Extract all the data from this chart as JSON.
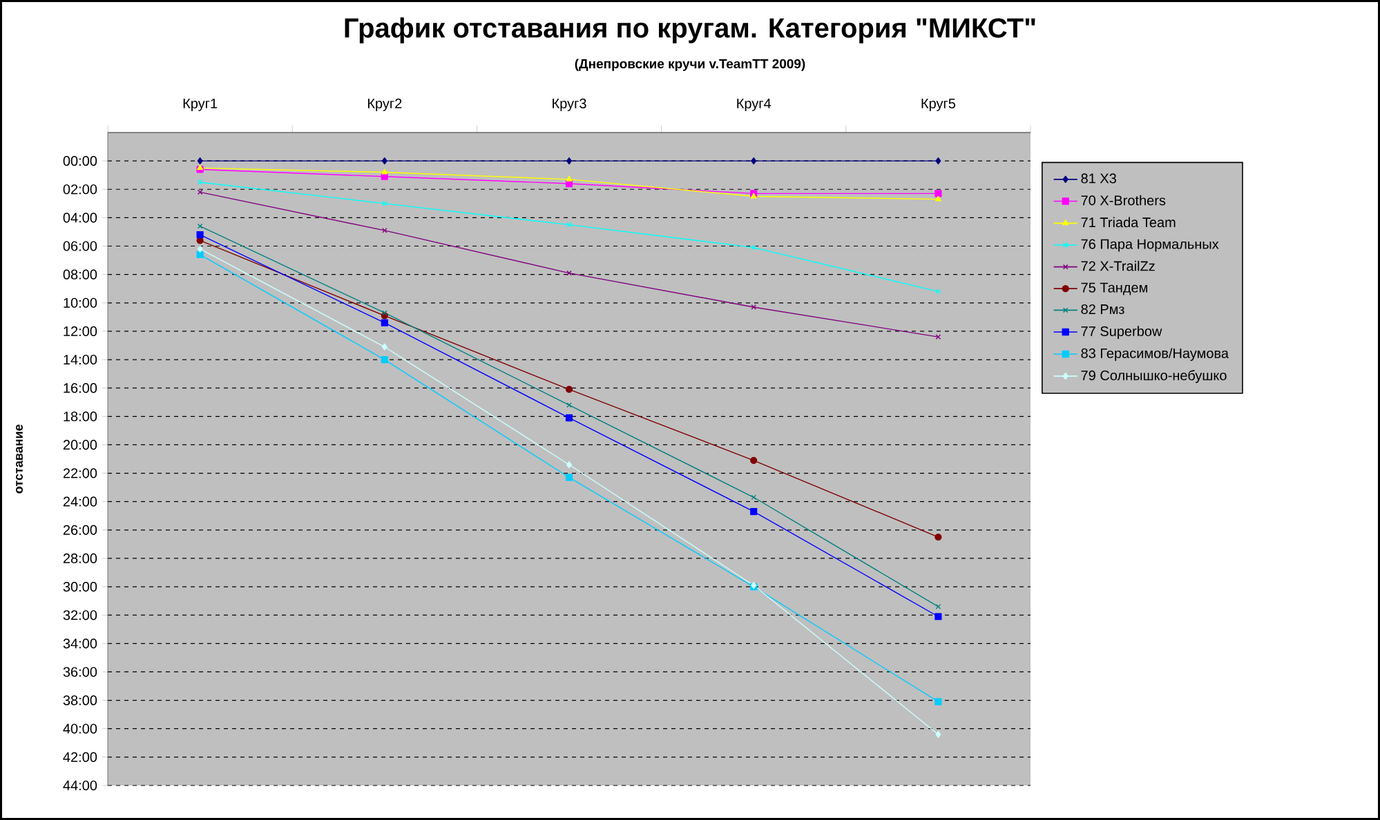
{
  "chart_data": {
    "type": "line",
    "title": "График отставания по кругам. Категория \"МИКСТ\"",
    "subtitle": "(Днепровские кручи v.TeamTT 2009)",
    "ylabel": "отставание",
    "categories": [
      "Круг1",
      "Круг2",
      "Круг3",
      "Круг4",
      "Круг5"
    ],
    "ylim": [
      44,
      -2
    ],
    "yticks": [
      {
        "value": 0,
        "label": "00:00"
      },
      {
        "value": 2,
        "label": "02:00"
      },
      {
        "value": 4,
        "label": "04:00"
      },
      {
        "value": 6,
        "label": "06:00"
      },
      {
        "value": 8,
        "label": "08:00"
      },
      {
        "value": 10,
        "label": "10:00"
      },
      {
        "value": 12,
        "label": "12:00"
      },
      {
        "value": 14,
        "label": "14:00"
      },
      {
        "value": 16,
        "label": "16:00"
      },
      {
        "value": 18,
        "label": "18:00"
      },
      {
        "value": 20,
        "label": "20:00"
      },
      {
        "value": 22,
        "label": "22:00"
      },
      {
        "value": 24,
        "label": "24:00"
      },
      {
        "value": 26,
        "label": "26:00"
      },
      {
        "value": 28,
        "label": "28:00"
      },
      {
        "value": 30,
        "label": "30:00"
      },
      {
        "value": 32,
        "label": "32:00"
      },
      {
        "value": 34,
        "label": "34:00"
      },
      {
        "value": 36,
        "label": "36:00"
      },
      {
        "value": 38,
        "label": "38:00"
      },
      {
        "value": 40,
        "label": "40:00"
      },
      {
        "value": 42,
        "label": "42:00"
      },
      {
        "value": 44,
        "label": "44:00"
      }
    ],
    "grid": "y",
    "legend": "right",
    "series": [
      {
        "name": "81 X3",
        "color": "#000080",
        "marker": "diamond",
        "values": [
          0,
          0,
          0,
          0,
          0
        ]
      },
      {
        "name": "70 X-Brothers",
        "color": "#ff00ff",
        "marker": "square",
        "values": [
          0.6,
          1.1,
          1.6,
          2.3,
          2.3
        ]
      },
      {
        "name": "71 Triada Team",
        "color": "#ffff00",
        "marker": "triangle",
        "values": [
          0.5,
          0.8,
          1.3,
          2.5,
          2.7
        ]
      },
      {
        "name": "76 Пара Нормальных",
        "color": "#00ffff",
        "marker": "cross",
        "values": [
          1.5,
          3.0,
          4.5,
          6.1,
          9.2
        ]
      },
      {
        "name": "72 X-TrailZz",
        "color": "#800080",
        "marker": "cross",
        "values": [
          2.2,
          4.9,
          7.9,
          10.3,
          12.4
        ]
      },
      {
        "name": "75 Тандем",
        "color": "#800000",
        "marker": "circle",
        "values": [
          5.6,
          10.9,
          16.1,
          21.1,
          26.5
        ]
      },
      {
        "name": "82 Рмз",
        "color": "#008080",
        "marker": "cross",
        "values": [
          4.6,
          10.7,
          17.2,
          23.7,
          31.4
        ]
      },
      {
        "name": "77 Superbow",
        "color": "#0000ff",
        "marker": "square",
        "values": [
          5.2,
          11.4,
          18.1,
          24.7,
          32.1
        ]
      },
      {
        "name": "83 Герасимов/Наумова",
        "color": "#00ccff",
        "marker": "square",
        "values": [
          6.6,
          14.0,
          22.3,
          30.0,
          38.1
        ]
      },
      {
        "name": "79 Солнышко-небушко",
        "color": "#ccffff",
        "marker": "diamond",
        "values": [
          6.2,
          13.1,
          21.4,
          29.9,
          40.4
        ]
      }
    ]
  }
}
